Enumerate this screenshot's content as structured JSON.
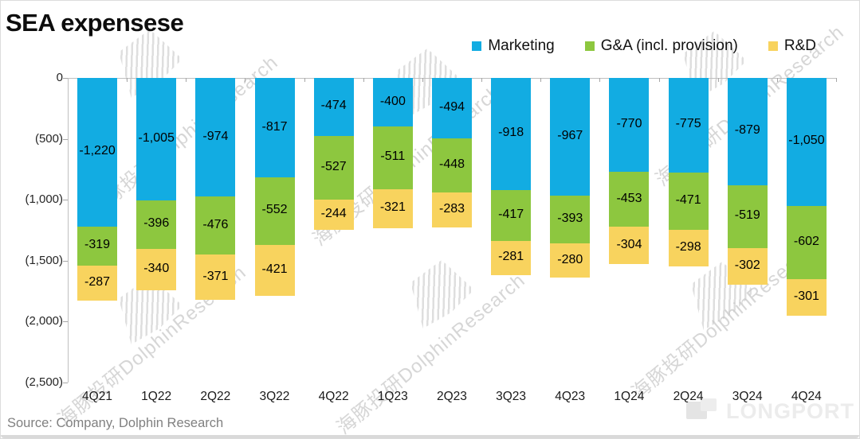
{
  "title": "SEA expensese",
  "legend": [
    {
      "label": "Marketing",
      "color": "#12ACE2"
    },
    {
      "label": "G&A (incl. provision)",
      "color": "#8DC73F"
    },
    {
      "label": "R&D",
      "color": "#F8D35E"
    }
  ],
  "chart_data": {
    "type": "bar",
    "stacked": true,
    "title": "SEA expensese",
    "categories": [
      "4Q21",
      "1Q22",
      "2Q22",
      "3Q22",
      "4Q22",
      "1Q23",
      "2Q23",
      "3Q23",
      "4Q23",
      "1Q24",
      "2Q24",
      "3Q24",
      "4Q24"
    ],
    "series": [
      {
        "name": "Marketing",
        "color": "#12ACE2",
        "values": [
          -1220,
          -1005,
          -974,
          -817,
          -474,
          -400,
          -494,
          -918,
          -967,
          -770,
          -775,
          -879,
          -1050
        ],
        "labels": [
          "-1,220",
          "-1,005",
          "-974",
          "-817",
          "-474",
          "-400",
          "-494",
          "-918",
          "-967",
          "-770",
          "-775",
          "-879",
          "-1,050"
        ]
      },
      {
        "name": "G&A (incl. provision)",
        "color": "#8DC73F",
        "values": [
          -319,
          -396,
          -476,
          -552,
          -527,
          -511,
          -448,
          -417,
          -393,
          -453,
          -471,
          -519,
          -602
        ],
        "labels": [
          "-319",
          "-396",
          "-476",
          "-552",
          "-527",
          "-511",
          "-448",
          "-417",
          "-393",
          "-453",
          "-471",
          "-519",
          "-602"
        ]
      },
      {
        "name": "R&D",
        "color": "#F8D35E",
        "values": [
          -287,
          -340,
          -371,
          -421,
          -244,
          -321,
          -283,
          -281,
          -280,
          -304,
          -298,
          -302,
          -301
        ],
        "labels": [
          "-287",
          "-340",
          "-371",
          "-421",
          "-244",
          "-321",
          "-283",
          "-281",
          "-280",
          "-304",
          "-298",
          "-302",
          "-301"
        ]
      }
    ],
    "y_axis": {
      "ticks": [
        "0",
        "(500)",
        "(1,000)",
        "(1,500)",
        "(2,000)",
        "(2,500)"
      ],
      "tick_values": [
        0,
        -500,
        -1000,
        -1500,
        -2000,
        -2500
      ],
      "min": -2500,
      "max": 0
    },
    "grid": false,
    "legend_position": "top-right",
    "data_labels": true
  },
  "source_note": "Source: Company, Dolphin Research",
  "watermark": {
    "text": "海豚投研DolphinResearch",
    "logo_text": "LONGPORT"
  }
}
